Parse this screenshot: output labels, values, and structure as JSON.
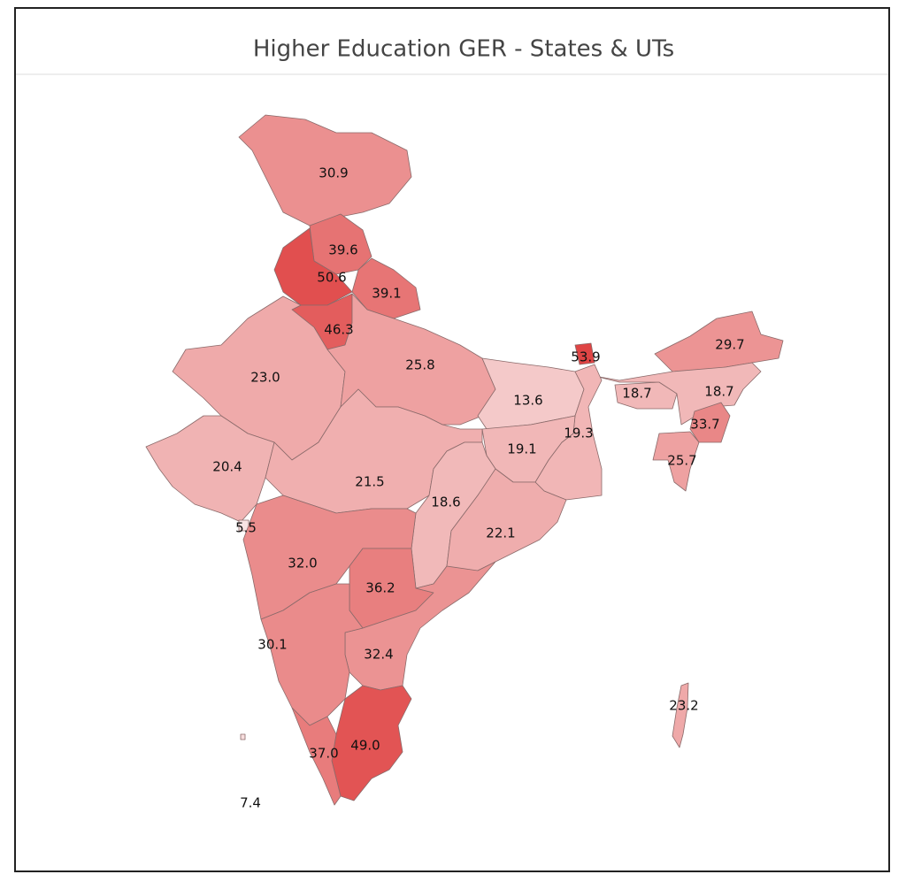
{
  "chart_data": {
    "type": "choropleth",
    "title": "Higher Education GER - States & UTs",
    "values": [
      30.9,
      39.6,
      50.6,
      39.1,
      46.3,
      23.0,
      25.8,
      53.9,
      29.7,
      18.7,
      18.7,
      33.7,
      25.7,
      13.6,
      19.3,
      19.1,
      20.4,
      21.5,
      18.6,
      22.1,
      5.5,
      32.0,
      36.2,
      30.1,
      32.4,
      49.0,
      37.0,
      7.4,
      23.2
    ],
    "value_labels": [
      "30.9",
      "39.6",
      "50.6",
      "39.1",
      "46.3",
      "23.0",
      "25.8",
      "53.9",
      "29.7",
      "18.7",
      "18.7",
      "33.7",
      "25.7",
      "13.6",
      "19.3",
      "19.1",
      "20.4",
      "21.5",
      "18.6",
      "22.1",
      "5.5",
      "32.0",
      "36.2",
      "30.1",
      "32.4",
      "49.0",
      "37.0",
      "7.4",
      "23.2"
    ],
    "color_range": [
      "#f8e4e4",
      "#df4444"
    ]
  }
}
